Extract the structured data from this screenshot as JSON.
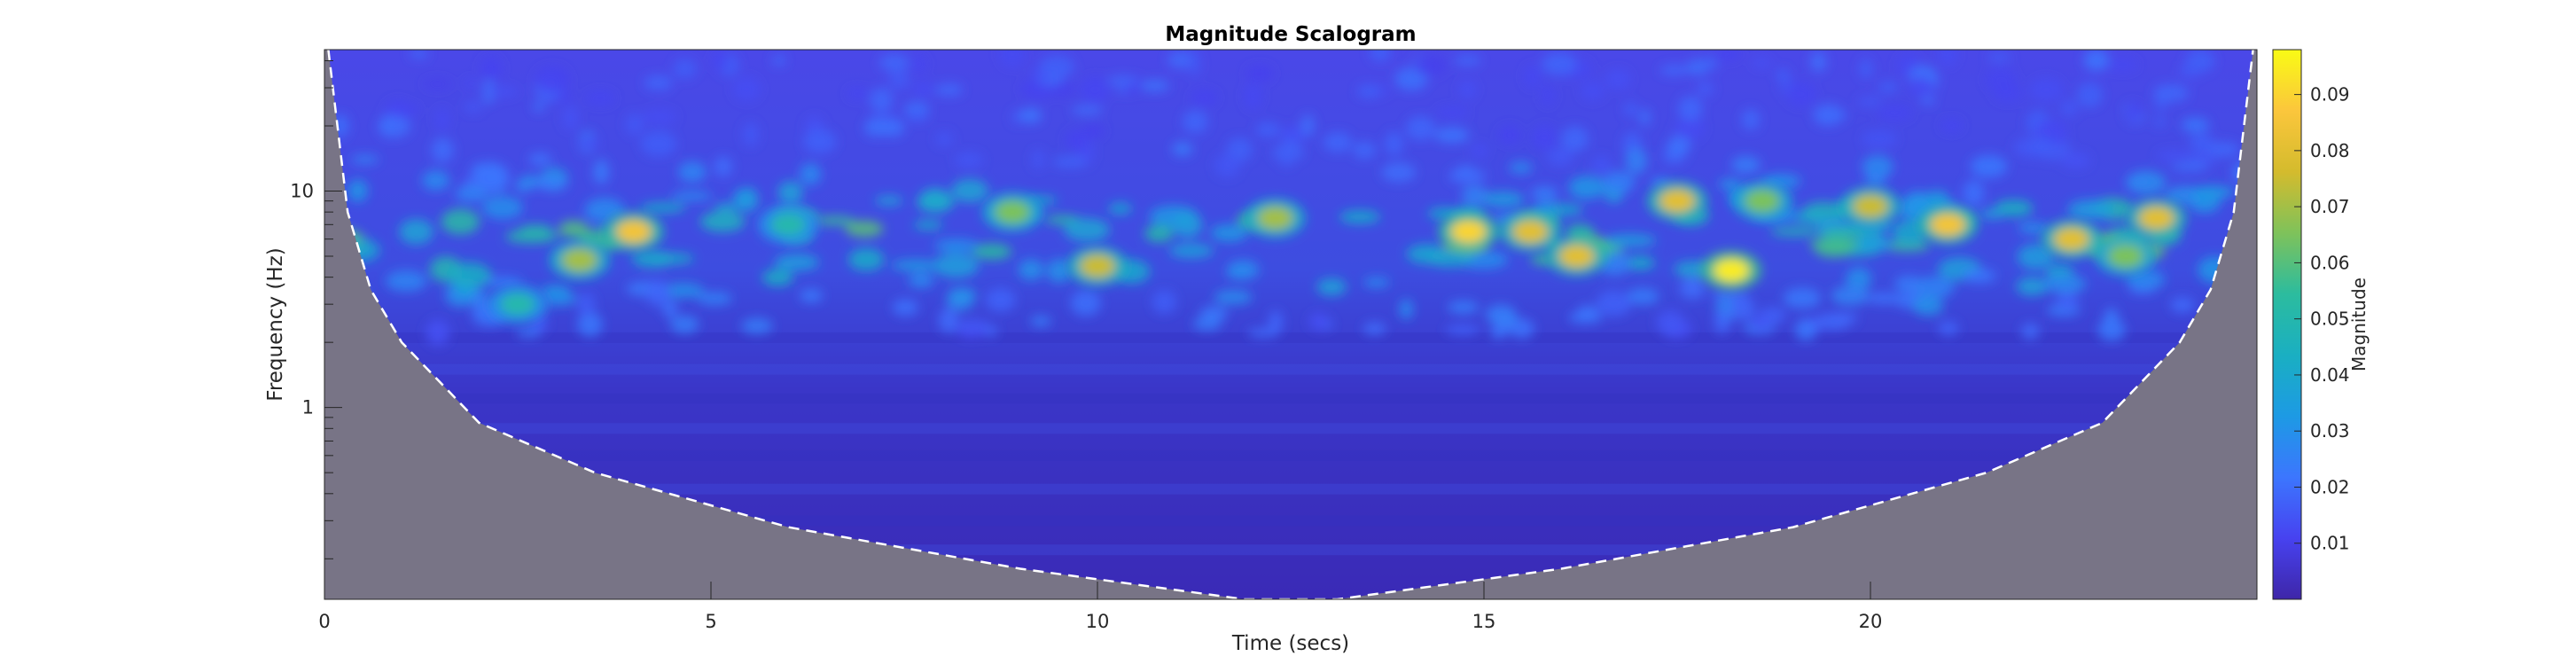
{
  "chart_data": {
    "type": "heatmap",
    "title": "Magnitude Scalogram",
    "xlabel": "Time (secs)",
    "ylabel": "Frequency (Hz)",
    "xlim": [
      0,
      25
    ],
    "ylim_hz": [
      0.13,
      45
    ],
    "y_scale": "log",
    "x_ticks": [
      0,
      5,
      10,
      15,
      20
    ],
    "x_tick_labels": [
      "0",
      "5",
      "10",
      "15",
      "20"
    ],
    "y_ticks": [
      1,
      10
    ],
    "y_tick_labels": [
      "1",
      "10"
    ],
    "colorbar": {
      "label": "Magnitude",
      "range": [
        0,
        0.098
      ],
      "ticks": [
        0.01,
        0.02,
        0.03,
        0.04,
        0.05,
        0.06,
        0.07,
        0.08,
        0.09
      ],
      "tick_labels": [
        "0.01",
        "0.02",
        "0.03",
        "0.04",
        "0.05",
        "0.06",
        "0.07",
        "0.08",
        "0.09"
      ],
      "colormap": [
        "#3e26a8",
        "#4742f0",
        "#3c76fe",
        "#1d9ae4",
        "#1aafc2",
        "#2cbc9e",
        "#7fc25a",
        "#d4bb2d",
        "#fbc63c",
        "#f9fb15"
      ]
    },
    "cone_of_influence": {
      "style": "white dashed",
      "shaded_color": "#787486",
      "points": [
        {
          "time": 0.05,
          "freq": 45
        },
        {
          "time": 0.3,
          "freq": 8
        },
        {
          "time": 0.6,
          "freq": 3.5
        },
        {
          "time": 1.0,
          "freq": 2.0
        },
        {
          "time": 2.0,
          "freq": 0.85
        },
        {
          "time": 3.5,
          "freq": 0.5
        },
        {
          "time": 6.0,
          "freq": 0.28
        },
        {
          "time": 9.0,
          "freq": 0.18
        },
        {
          "time": 11.9,
          "freq": 0.13
        },
        {
          "time": 13.1,
          "freq": 0.13
        },
        {
          "time": 16.0,
          "freq": 0.18
        },
        {
          "time": 19.0,
          "freq": 0.28
        },
        {
          "time": 21.5,
          "freq": 0.5
        },
        {
          "time": 23.0,
          "freq": 0.85
        },
        {
          "time": 24.0,
          "freq": 2.0
        },
        {
          "time": 24.4,
          "freq": 3.5
        },
        {
          "time": 24.7,
          "freq": 8
        },
        {
          "time": 24.95,
          "freq": 45
        }
      ]
    },
    "hotspots": [
      {
        "time": 4.0,
        "freq": 6.5,
        "magnitude": 0.085
      },
      {
        "time": 3.3,
        "freq": 4.8,
        "magnitude": 0.07
      },
      {
        "time": 2.5,
        "freq": 3.0,
        "magnitude": 0.05
      },
      {
        "time": 6.0,
        "freq": 7.0,
        "magnitude": 0.05
      },
      {
        "time": 8.9,
        "freq": 8.0,
        "magnitude": 0.065
      },
      {
        "time": 10.0,
        "freq": 4.5,
        "magnitude": 0.075
      },
      {
        "time": 12.3,
        "freq": 7.5,
        "magnitude": 0.07
      },
      {
        "time": 14.8,
        "freq": 6.5,
        "magnitude": 0.09
      },
      {
        "time": 15.6,
        "freq": 6.5,
        "magnitude": 0.08
      },
      {
        "time": 16.2,
        "freq": 5.0,
        "magnitude": 0.08
      },
      {
        "time": 17.5,
        "freq": 9.0,
        "magnitude": 0.08
      },
      {
        "time": 18.2,
        "freq": 4.3,
        "magnitude": 0.095
      },
      {
        "time": 18.6,
        "freq": 9.0,
        "magnitude": 0.065
      },
      {
        "time": 20.0,
        "freq": 8.5,
        "magnitude": 0.075
      },
      {
        "time": 21.0,
        "freq": 7.0,
        "magnitude": 0.085
      },
      {
        "time": 22.6,
        "freq": 6.0,
        "magnitude": 0.08
      },
      {
        "time": 23.7,
        "freq": 7.5,
        "magnitude": 0.08
      },
      {
        "time": 23.3,
        "freq": 5.0,
        "magnitude": 0.065
      }
    ]
  }
}
